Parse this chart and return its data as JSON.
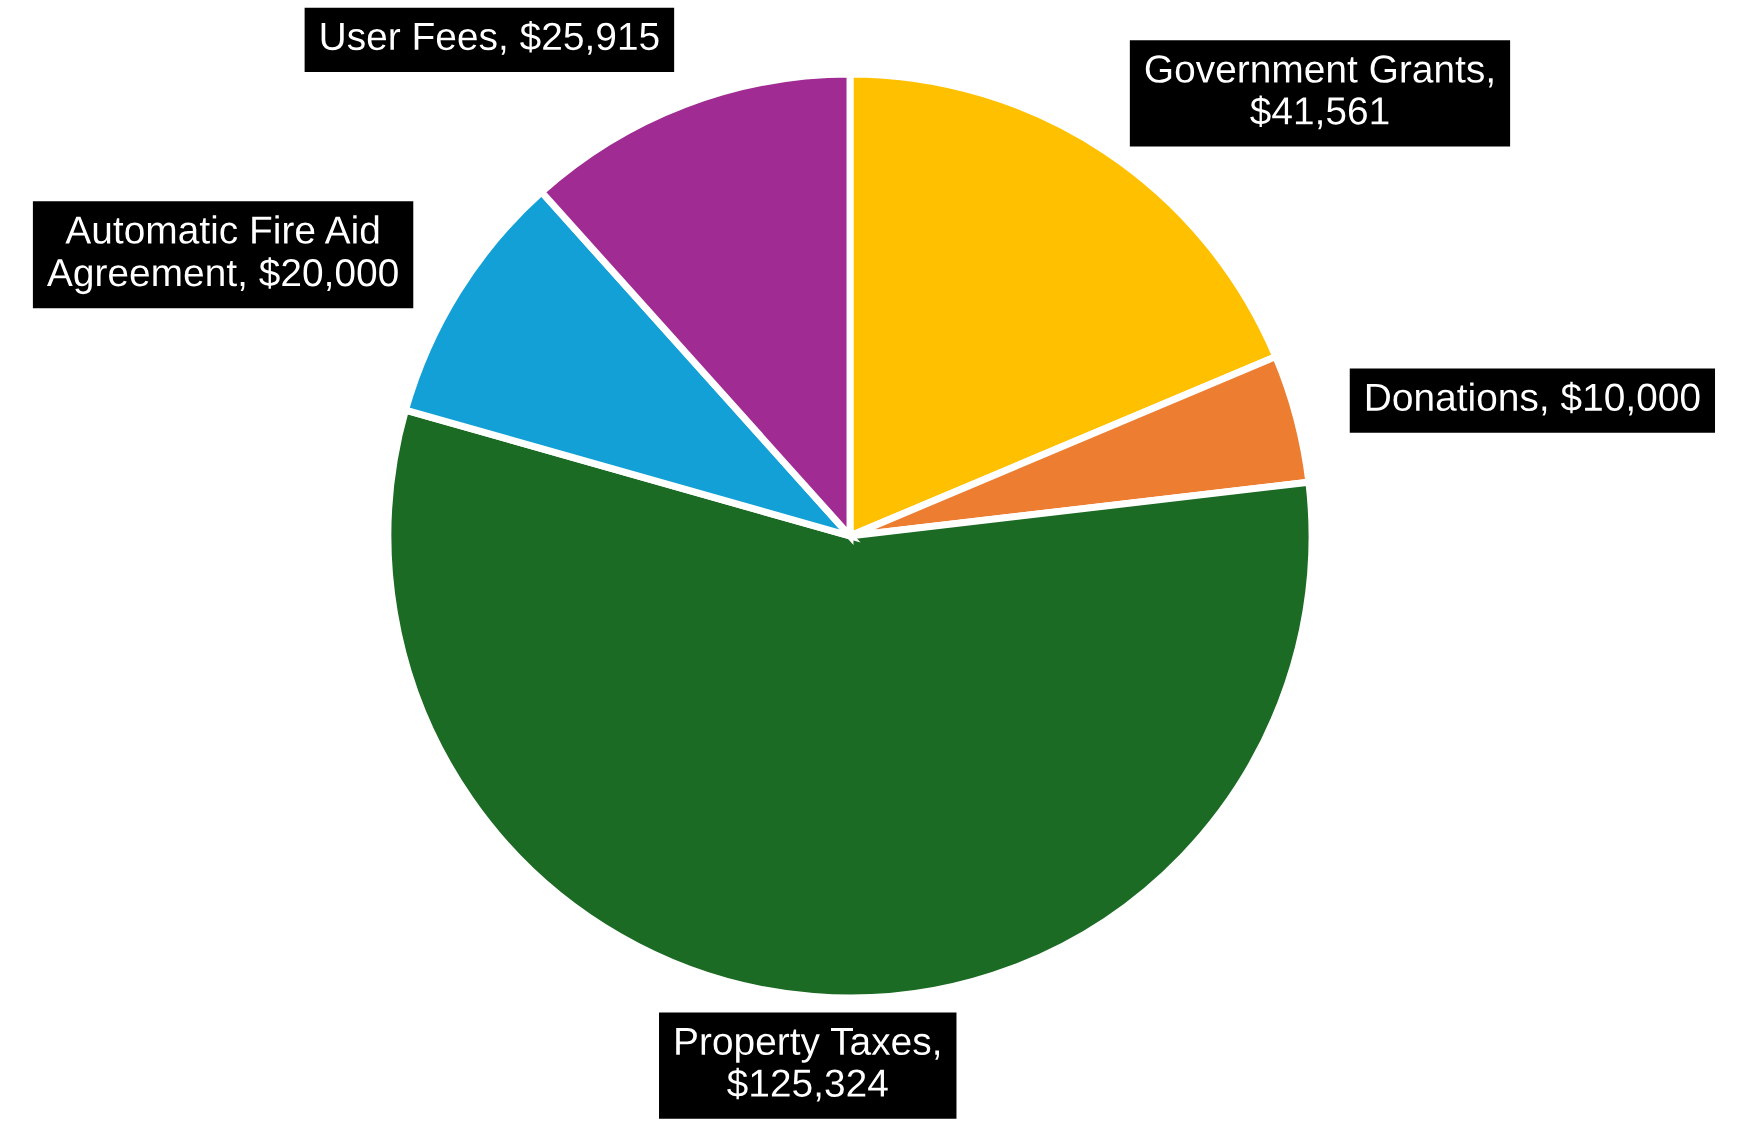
{
  "chart_data": {
    "type": "pie",
    "categories": [
      "Government Grants",
      "Donations",
      "Property Taxes",
      "Automatic Fire Aid Agreement",
      "User Fees"
    ],
    "values": [
      41561,
      10000,
      125324,
      20000,
      25915
    ],
    "value_labels": [
      ", $41,561",
      ", $10,000",
      ", $125,324",
      ", $20,000",
      ", $25,915"
    ],
    "colors": [
      "#ffc000",
      "#ed7d31",
      "#1c6b24",
      "#12a0d7",
      "#a02b93"
    ],
    "legend": false
  }
}
